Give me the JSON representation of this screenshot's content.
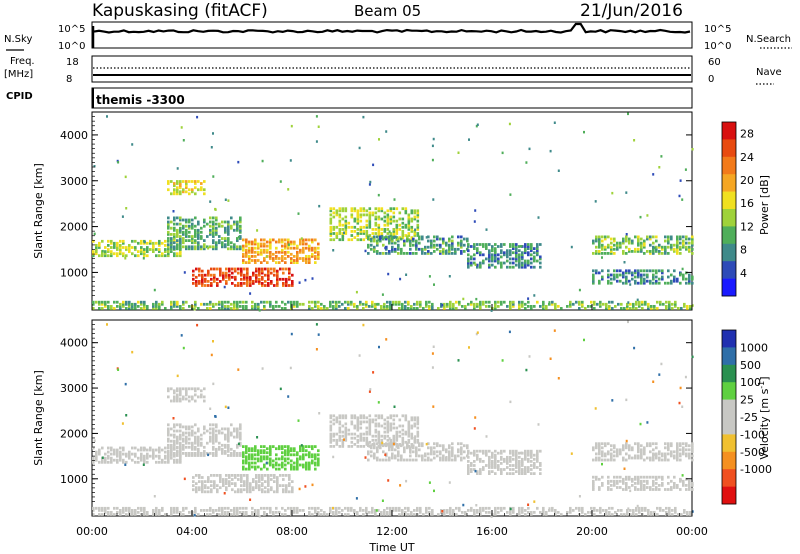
{
  "header": {
    "station": "Kapuskasing (fitACF)",
    "beam": "Beam 05",
    "date": "21/Jun/2016"
  },
  "left_labels": {
    "nsky": "N.Sky",
    "freq": "Freq.",
    "freq_unit": "[MHz]",
    "cpid": "CPID"
  },
  "right_labels": {
    "nsearch": "N.Search",
    "nave": "Nave"
  },
  "cpid_value": "themis -3300",
  "noise_ticks_left": [
    "10^5",
    "10^0"
  ],
  "noise_ticks_right": [
    "10^5",
    "10^0"
  ],
  "freq_ticks": [
    "18",
    "8"
  ],
  "nave_ticks": [
    "60",
    "0"
  ],
  "x_ticks": [
    "00:00",
    "04:00",
    "08:00",
    "12:00",
    "16:00",
    "20:00",
    "00:00"
  ],
  "x_label": "Time UT",
  "y_label": "Slant Range [km]",
  "y_ticks": [
    "1000",
    "2000",
    "3000",
    "4000"
  ],
  "power_scale": {
    "label": "Power [dB]",
    "ticks": [
      "4",
      "8",
      "12",
      "16",
      "20",
      "24",
      "28"
    ],
    "colors": [
      "#1a1aff",
      "#2e4bb8",
      "#3f8a8a",
      "#4fae5a",
      "#9fd23a",
      "#f0e020",
      "#f5a623",
      "#f27a1a",
      "#e84a10",
      "#d81010"
    ]
  },
  "velocity_scale": {
    "label": "Velocity [m s",
    "label_sup": "-1",
    "label_end": "]",
    "ticks": [
      "1000",
      "500",
      "100",
      "25",
      "-25",
      "-100",
      "-500",
      "-1000"
    ],
    "colors": [
      "#2030b0",
      "#2f6fa8",
      "#2a9050",
      "#5fd040",
      "#c8c8c4",
      "#c8c8c4",
      "#f0c030",
      "#f59020",
      "#f05020",
      "#e01010"
    ]
  },
  "chart_data": {
    "type": "heatmap",
    "x_range_hours": [
      0,
      24
    ],
    "y_range_km": [
      180,
      4500
    ],
    "panels": [
      {
        "name": "power",
        "value_range": [
          0,
          30
        ],
        "bands": [
          {
            "t": [
              0.0,
              3.5
            ],
            "r": [
              1350,
              1700
            ],
            "value": 14
          },
          {
            "t": [
              3.0,
              6.0
            ],
            "r": [
              1500,
              2200
            ],
            "value": 10
          },
          {
            "t": [
              4.0,
              8.0
            ],
            "r": [
              700,
              1100
            ],
            "value": 26
          },
          {
            "t": [
              6.0,
              9.0
            ],
            "r": [
              1200,
              1700
            ],
            "value": 20
          },
          {
            "t": [
              3.0,
              4.5
            ],
            "r": [
              2700,
              3000
            ],
            "value": 16
          },
          {
            "t": [
              9.5,
              13.0
            ],
            "r": [
              1700,
              2400
            ],
            "value": 14
          },
          {
            "t": [
              11.0,
              15.0
            ],
            "r": [
              1400,
              1800
            ],
            "value": 9
          },
          {
            "t": [
              15.0,
              18.0
            ],
            "r": [
              1100,
              1600
            ],
            "value": 8
          },
          {
            "t": [
              20.0,
              24.0
            ],
            "r": [
              1400,
              1800
            ],
            "value": 12
          },
          {
            "t": [
              20.0,
              24.0
            ],
            "r": [
              750,
              1050
            ],
            "value": 8
          },
          {
            "t": [
              0.0,
              24.0
            ],
            "r": [
              200,
              350
            ],
            "value": 12
          }
        ]
      },
      {
        "name": "velocity",
        "value_range": [
          -1000,
          1000
        ],
        "bands": [
          {
            "t": [
              0.0,
              3.5
            ],
            "r": [
              1350,
              1700
            ],
            "value": 0
          },
          {
            "t": [
              3.0,
              6.0
            ],
            "r": [
              1500,
              2200
            ],
            "value": 0
          },
          {
            "t": [
              4.0,
              8.0
            ],
            "r": [
              700,
              1100
            ],
            "value": -150
          },
          {
            "t": [
              6.0,
              9.0
            ],
            "r": [
              1200,
              1700
            ],
            "value": 300
          },
          {
            "t": [
              3.0,
              4.5
            ],
            "r": [
              2700,
              3000
            ],
            "value": -150
          },
          {
            "t": [
              9.5,
              13.0
            ],
            "r": [
              1700,
              2400
            ],
            "value": 0
          },
          {
            "t": [
              11.0,
              15.0
            ],
            "r": [
              1400,
              1800
            ],
            "value": 0
          },
          {
            "t": [
              15.0,
              18.0
            ],
            "r": [
              1100,
              1600
            ],
            "value": 0
          },
          {
            "t": [
              20.0,
              24.0
            ],
            "r": [
              1400,
              1800
            ],
            "value": 0
          },
          {
            "t": [
              20.0,
              24.0
            ],
            "r": [
              750,
              1050
            ],
            "value": 0
          },
          {
            "t": [
              0.0,
              24.0
            ],
            "r": [
              200,
              350
            ],
            "value": 0
          }
        ]
      }
    ]
  }
}
